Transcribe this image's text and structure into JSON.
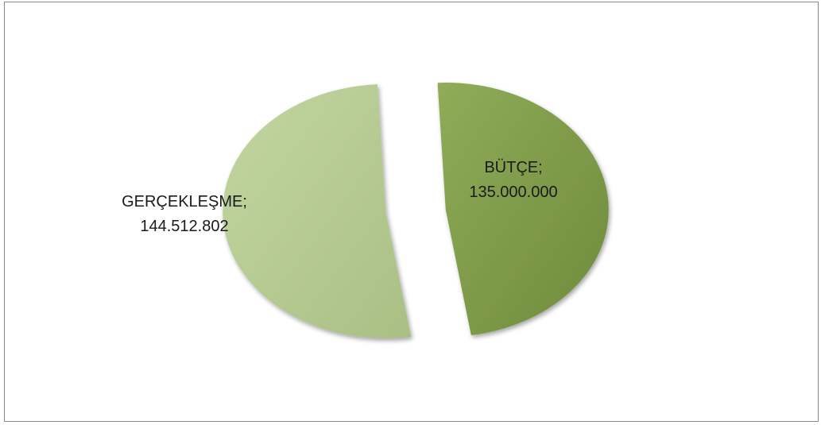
{
  "chart_data": {
    "type": "pie",
    "slices": [
      {
        "name": "BÜTÇE",
        "label": "BÜTÇE;",
        "value_text": "135.000.000",
        "value": 135000000,
        "color": "#7f9b4a"
      },
      {
        "name": "GERÇEKLEŞME",
        "label": "GERÇEKLEŞME;",
        "value_text": "144.512.802",
        "value": 144512802,
        "color": "#b7cc92"
      }
    ],
    "exploded": true,
    "legend": "none"
  }
}
